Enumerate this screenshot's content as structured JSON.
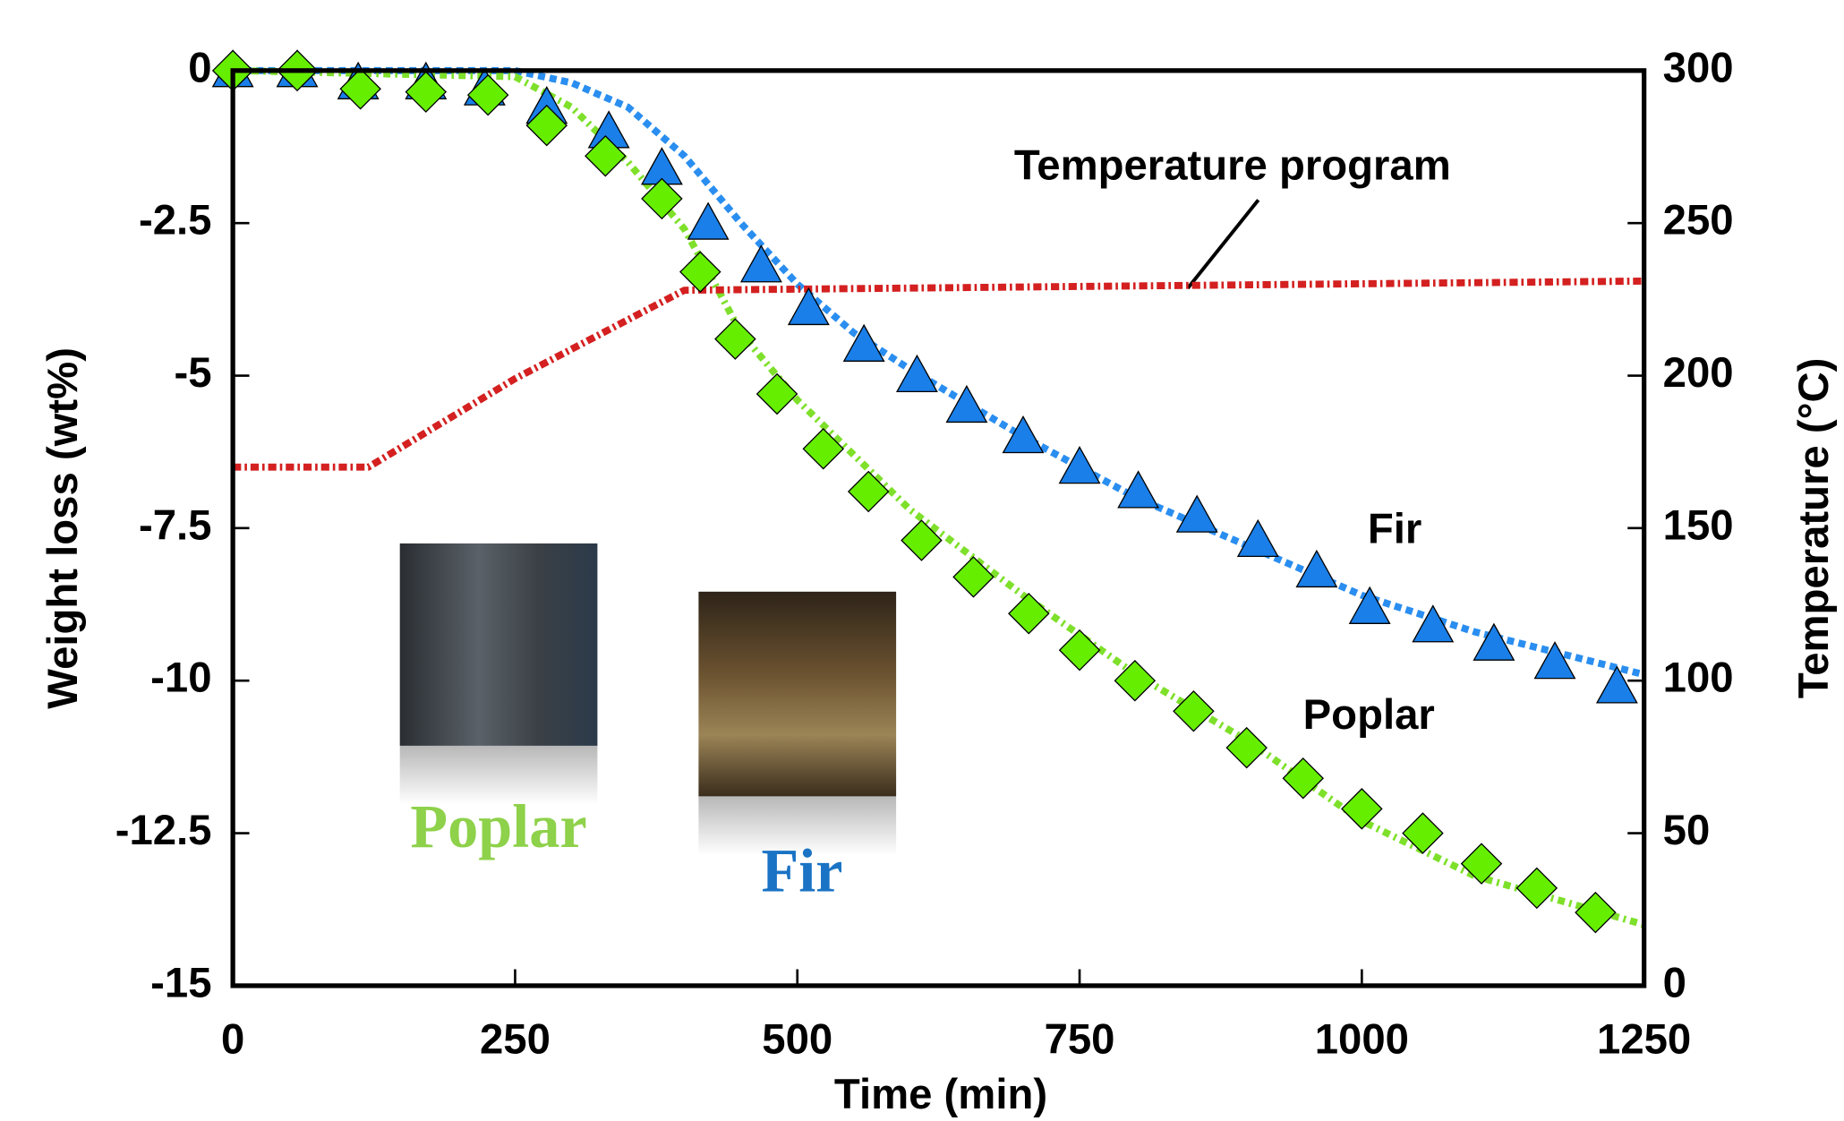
{
  "chart_data": {
    "type": "line",
    "xlabel": "Time (min)",
    "ylabel": "Weight loss (wt%)",
    "y2label": "Temperature (°C)",
    "xlim": [
      0,
      1250
    ],
    "ylim": [
      -15,
      0
    ],
    "y2lim": [
      0,
      300
    ],
    "xticks": [
      0,
      250,
      500,
      750,
      1000,
      1250
    ],
    "yticks": [
      0,
      -2.5,
      -5,
      -7.5,
      -10,
      -12.5,
      -15
    ],
    "y2ticks": [
      0,
      50,
      100,
      150,
      200,
      250,
      300
    ],
    "series": [
      {
        "type": "line",
        "color": "#2a8ef0",
        "axis": "y",
        "x": [
          0,
          250,
          300,
          350,
          400,
          450,
          500,
          550,
          600,
          700,
          800,
          900,
          1000,
          1100,
          1250
        ],
        "values": [
          0,
          0,
          -0.2,
          -0.6,
          -1.4,
          -2.5,
          -3.5,
          -4.3,
          -4.9,
          -6.0,
          -7.0,
          -7.8,
          -8.6,
          -9.2,
          -9.9
        ]
      },
      {
        "type": "line",
        "color": "#7ee02a",
        "axis": "y",
        "x": [
          0,
          250,
          300,
          350,
          400,
          430,
          450,
          500,
          550,
          600,
          700,
          800,
          900,
          1000,
          1100,
          1250
        ],
        "values": [
          0,
          -0.1,
          -0.6,
          -1.5,
          -2.6,
          -3.6,
          -4.3,
          -5.4,
          -6.3,
          -7.2,
          -8.6,
          -9.9,
          -11.0,
          -12.3,
          -13.2,
          -14.0
        ]
      },
      {
        "type": "line",
        "color": "#d42020",
        "axis": "y2",
        "x": [
          0,
          120,
          250,
          400,
          1250
        ],
        "values": [
          170,
          170,
          199,
          228,
          231
        ]
      },
      {
        "type": "scatter",
        "marker": "triangle",
        "color": "#1a7fe8",
        "axis": "y",
        "x": [
          0,
          57,
          111,
          171,
          223,
          278,
          333,
          380,
          421,
          468,
          510,
          559,
          606,
          650,
          700,
          750,
          802,
          854,
          908,
          960,
          1007,
          1063,
          1117,
          1171,
          1226
        ],
        "values": [
          0,
          0,
          -0.2,
          -0.2,
          -0.3,
          -0.6,
          -1.0,
          -1.6,
          -2.5,
          -3.2,
          -3.9,
          -4.5,
          -5.0,
          -5.5,
          -6.0,
          -6.5,
          -6.9,
          -7.3,
          -7.7,
          -8.2,
          -8.8,
          -9.1,
          -9.4,
          -9.7,
          -10.1
        ]
      },
      {
        "type": "scatter",
        "marker": "diamond",
        "color": "#66ee00",
        "axis": "y",
        "x": [
          0,
          57,
          113,
          171,
          226,
          278,
          330,
          380,
          414,
          445,
          482,
          523,
          563,
          610,
          656,
          705,
          750,
          799,
          851,
          898,
          948,
          1000,
          1054,
          1106,
          1155,
          1207
        ],
        "values": [
          0,
          0,
          -0.3,
          -0.35,
          -0.4,
          -0.9,
          -1.4,
          -2.1,
          -3.3,
          -4.4,
          -5.3,
          -6.2,
          -6.9,
          -7.7,
          -8.3,
          -8.9,
          -9.5,
          -10.0,
          -10.5,
          -11.1,
          -11.6,
          -12.1,
          -12.5,
          -13.0,
          -13.4,
          -13.8
        ]
      }
    ],
    "annotations": [
      "Temperature program",
      "Fir",
      "Poplar"
    ],
    "photo_labels": [
      {
        "text": "Poplar",
        "color": "#8ed14a"
      },
      {
        "text": "Fir",
        "color": "#1a73c4"
      }
    ]
  }
}
